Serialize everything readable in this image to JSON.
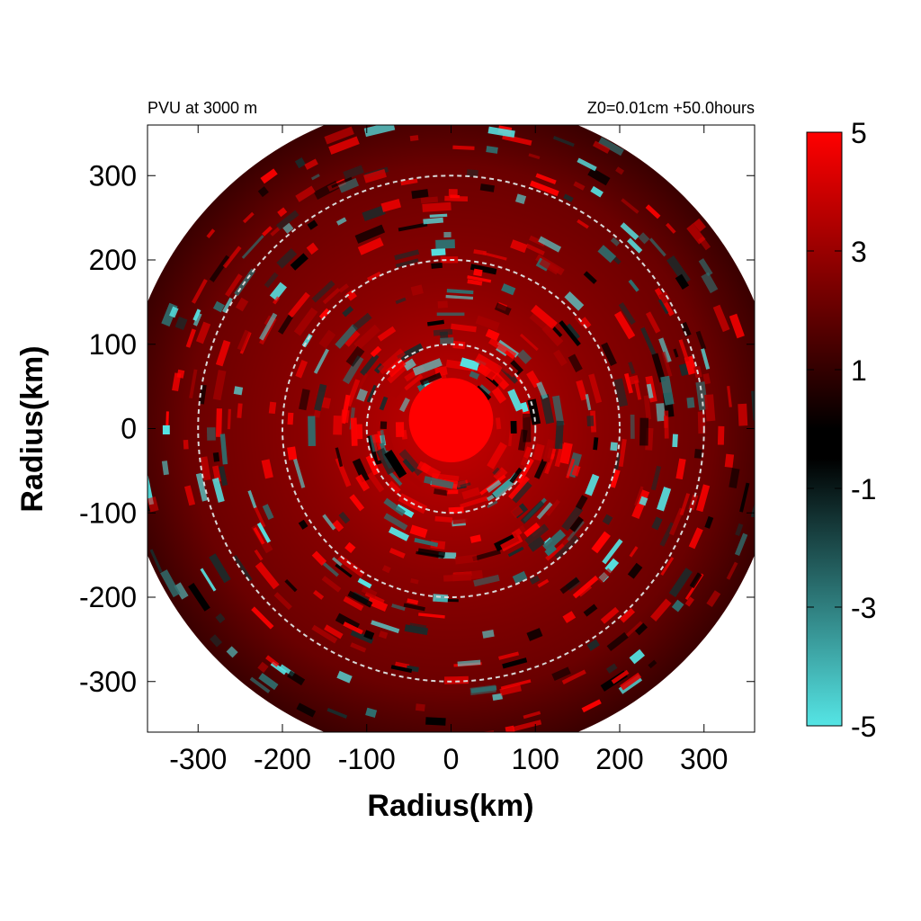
{
  "chart_data": {
    "type": "heatmap",
    "title_left": "PVU at  3000 m",
    "title_right": "Z0=0.01cm  +50.0hours",
    "xlabel": "Radius(km)",
    "ylabel": "Radius(km)",
    "xlim": [
      -360,
      360
    ],
    "ylim": [
      -360,
      360
    ],
    "x_ticks": [
      -300,
      -200,
      -100,
      0,
      100,
      200,
      300
    ],
    "y_ticks": [
      -300,
      -200,
      -100,
      0,
      100,
      200,
      300
    ],
    "x_tick_labels": [
      "-300",
      "-200",
      "-100",
      "0",
      "100",
      "200",
      "300"
    ],
    "y_tick_labels": [
      "-300",
      "-200",
      "-100",
      "0",
      "100",
      "200",
      "300"
    ],
    "domain_radius_km": 390,
    "reference_circles_km": [
      100,
      200,
      300
    ],
    "core": {
      "center_km": [
        0,
        10
      ],
      "radius_km": 50,
      "value": 5
    },
    "field_description_colors": {
      "positive": "#ff0000",
      "neutral": "#000000",
      "negative": "#55e5e5"
    },
    "colorbar": {
      "min": -5,
      "max": 5,
      "tick_values": [
        5,
        3,
        1,
        -1,
        -3,
        -5
      ],
      "tick_labels": [
        "5",
        "3",
        "1",
        "-1",
        "-3",
        "-5"
      ],
      "colors": [
        "#ff0000",
        "#000000",
        "#55e5e5"
      ]
    }
  }
}
